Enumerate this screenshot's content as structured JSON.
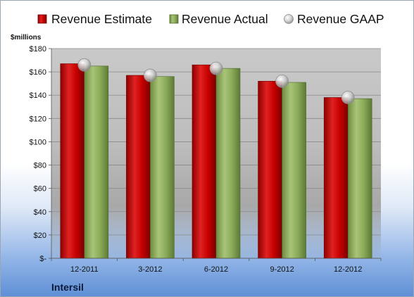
{
  "chart_data": {
    "type": "bar",
    "title": "",
    "xlabel": "",
    "ylabel": "$millions",
    "ylim": [
      0,
      180
    ],
    "yticks": [
      0,
      20,
      40,
      60,
      80,
      100,
      120,
      140,
      160,
      180
    ],
    "ytick_labels": [
      "$-",
      "$20",
      "$40",
      "$60",
      "$80",
      "$100",
      "$120",
      "$140",
      "$160",
      "$180"
    ],
    "categories": [
      "12-2011",
      "3-2012",
      "6-2012",
      "9-2012",
      "12-2012"
    ],
    "series": [
      {
        "name": "Revenue Estimate",
        "kind": "bar",
        "color": "#c00000",
        "values": [
          167,
          157,
          166,
          152,
          138
        ]
      },
      {
        "name": "Revenue Actual",
        "kind": "bar",
        "color": "#8cac5a",
        "values": [
          165,
          156,
          163,
          151,
          137
        ]
      },
      {
        "name": "Revenue GAAP",
        "kind": "marker",
        "color": "#c0c0c0",
        "values": [
          166,
          157,
          163,
          152,
          138
        ]
      }
    ],
    "legend_position": "top",
    "grid": true,
    "footer_label": "Intersil"
  }
}
